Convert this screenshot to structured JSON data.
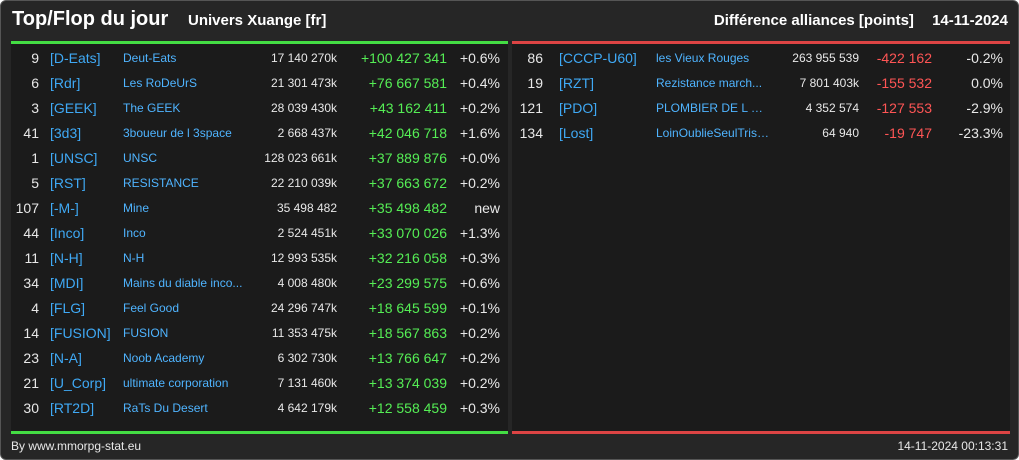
{
  "header": {
    "title": "Top/Flop du jour",
    "subtitle": "Univers Xuange [fr]",
    "metric": "Différence alliances [points]",
    "date": "14-11-2024"
  },
  "colors": {
    "background": "#262626",
    "panel": "#1b1b1b",
    "top_accent": "#44dd44",
    "flop_accent": "#dd4444",
    "tag": "#3fa9f5",
    "positive": "#55ee55",
    "negative": "#ff5555"
  },
  "top": [
    {
      "rank": "9",
      "tag": "[D-Eats]",
      "name": "Deut-Eats",
      "points": "17 140 270k",
      "diff": "+100 427 341",
      "pct": "+0.6%"
    },
    {
      "rank": "6",
      "tag": "[Rdr]",
      "name": "Les RoDeUrS",
      "points": "21 301 473k",
      "diff": "+76 667 581",
      "pct": "+0.4%"
    },
    {
      "rank": "3",
      "tag": "[GEEK]",
      "name": "The GEEK",
      "points": "28 039 430k",
      "diff": "+43 162 411",
      "pct": "+0.2%"
    },
    {
      "rank": "41",
      "tag": "[3d3]",
      "name": "3boueur de l 3space",
      "points": "2 668 437k",
      "diff": "+42 046 718",
      "pct": "+1.6%"
    },
    {
      "rank": "1",
      "tag": "[UNSC]",
      "name": "UNSC",
      "points": "128 023 661k",
      "diff": "+37 889 876",
      "pct": "+0.0%"
    },
    {
      "rank": "5",
      "tag": "[RST]",
      "name": "RESISTANCE",
      "points": "22 210 039k",
      "diff": "+37 663 672",
      "pct": "+0.2%"
    },
    {
      "rank": "107",
      "tag": "[-M-]",
      "name": "Mine",
      "points": "35 498 482",
      "diff": "+35 498 482",
      "pct": "new"
    },
    {
      "rank": "44",
      "tag": "[Inco]",
      "name": "Inco",
      "points": "2 524 451k",
      "diff": "+33 070 026",
      "pct": "+1.3%"
    },
    {
      "rank": "11",
      "tag": "[N-H]",
      "name": "N-H",
      "points": "12 993 535k",
      "diff": "+32 216 058",
      "pct": "+0.3%"
    },
    {
      "rank": "34",
      "tag": "[MDI]",
      "name": "Mains du diable inco...",
      "points": "4 008 480k",
      "diff": "+23 299 575",
      "pct": "+0.6%"
    },
    {
      "rank": "4",
      "tag": "[FLG]",
      "name": "Feel Good",
      "points": "24 296 747k",
      "diff": "+18 645 599",
      "pct": "+0.1%"
    },
    {
      "rank": "14",
      "tag": "[FUSION]",
      "name": "FUSION",
      "points": "11 353 475k",
      "diff": "+18 567 863",
      "pct": "+0.2%"
    },
    {
      "rank": "23",
      "tag": "[N-A]",
      "name": "Noob Academy",
      "points": "6 302 730k",
      "diff": "+13 766 647",
      "pct": "+0.2%"
    },
    {
      "rank": "21",
      "tag": "[U_Corp]",
      "name": "ultimate corporation",
      "points": "7 131 460k",
      "diff": "+13 374 039",
      "pct": "+0.2%"
    },
    {
      "rank": "30",
      "tag": "[RT2D]",
      "name": "RaTs Du Desert",
      "points": "4 642 179k",
      "diff": "+12 558 459",
      "pct": "+0.3%"
    }
  ],
  "flop": [
    {
      "rank": "86",
      "tag": "[CCCP-U60]",
      "name": "les Vieux Rouges",
      "points": "263 955 539",
      "diff": "-422 162",
      "pct": "-0.2%"
    },
    {
      "rank": "19",
      "tag": "[RZT]",
      "name": "Rezistance march...",
      "points": "7 801 403k",
      "diff": "-155 532",
      "pct": "0.0%"
    },
    {
      "rank": "121",
      "tag": "[PDO]",
      "name": "PLOMBIER DE L O...",
      "points": "4 352 574",
      "diff": "-127 553",
      "pct": "-2.9%"
    },
    {
      "rank": "134",
      "tag": "[Lost]",
      "name": "LoinOublieSeulTrist...",
      "points": "64 940",
      "diff": "-19 747",
      "pct": "-23.3%"
    }
  ],
  "footer": {
    "source": "By www.mmorpg-stat.eu",
    "timestamp": "14-11-2024 00:13:31"
  }
}
